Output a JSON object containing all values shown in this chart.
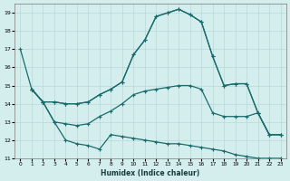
{
  "xlabel": "Humidex (Indice chaleur)",
  "bg_color": "#d4eeee",
  "grid_color": "#b8d8d8",
  "line_color": "#1a6b6b",
  "xlim": [
    -0.5,
    23.5
  ],
  "ylim": [
    11,
    19.5
  ],
  "xticks": [
    0,
    1,
    2,
    3,
    4,
    5,
    6,
    7,
    8,
    9,
    10,
    11,
    12,
    13,
    14,
    15,
    16,
    17,
    18,
    19,
    20,
    21,
    22,
    23
  ],
  "yticks": [
    11,
    12,
    13,
    14,
    15,
    16,
    17,
    18,
    19
  ],
  "lines": [
    {
      "x": [
        0,
        1,
        2,
        3,
        4,
        5,
        6,
        7,
        8,
        9,
        10,
        11,
        12,
        13,
        14,
        15,
        16,
        17,
        18,
        19,
        20,
        21,
        22,
        23
      ],
      "y": [
        17.0,
        14.8,
        14.1,
        14.1,
        14.0,
        14.0,
        14.1,
        14.5,
        14.8,
        15.2,
        16.7,
        17.5,
        18.8,
        19.0,
        19.2,
        18.9,
        18.5,
        16.6,
        15.0,
        15.1,
        15.1,
        13.5,
        12.3,
        12.3
      ]
    },
    {
      "x": [
        1,
        2,
        3,
        4,
        5,
        6,
        7,
        8,
        9,
        10,
        11,
        12,
        13,
        14,
        15,
        16,
        17,
        18,
        19,
        20,
        21,
        22,
        23
      ],
      "y": [
        14.8,
        14.1,
        14.1,
        14.0,
        14.0,
        14.1,
        14.5,
        14.8,
        15.2,
        16.7,
        17.5,
        18.8,
        19.0,
        19.2,
        18.9,
        18.5,
        16.6,
        15.0,
        15.1,
        15.1,
        13.5,
        12.3,
        12.3
      ]
    },
    {
      "x": [
        1,
        2,
        3,
        4,
        5,
        6,
        7,
        8,
        9,
        10,
        11,
        12,
        13,
        14,
        15,
        16,
        17,
        18,
        19,
        20,
        21,
        22,
        23
      ],
      "y": [
        14.8,
        14.1,
        13.0,
        12.9,
        12.8,
        12.9,
        13.3,
        13.6,
        14.0,
        14.5,
        14.7,
        14.8,
        14.9,
        15.0,
        15.0,
        14.8,
        13.5,
        13.3,
        13.3,
        13.3,
        13.5,
        12.3,
        12.3
      ]
    },
    {
      "x": [
        1,
        2,
        3,
        4,
        5,
        6,
        7,
        8,
        9,
        10,
        11,
        12,
        13,
        14,
        15,
        16,
        17,
        18,
        19,
        20,
        21,
        22,
        23
      ],
      "y": [
        14.8,
        14.1,
        13.0,
        12.0,
        11.8,
        11.7,
        11.5,
        12.3,
        12.2,
        12.1,
        12.0,
        11.9,
        11.8,
        11.8,
        11.7,
        11.6,
        11.5,
        11.4,
        11.2,
        11.1,
        11.0,
        11.0,
        11.0
      ]
    }
  ]
}
